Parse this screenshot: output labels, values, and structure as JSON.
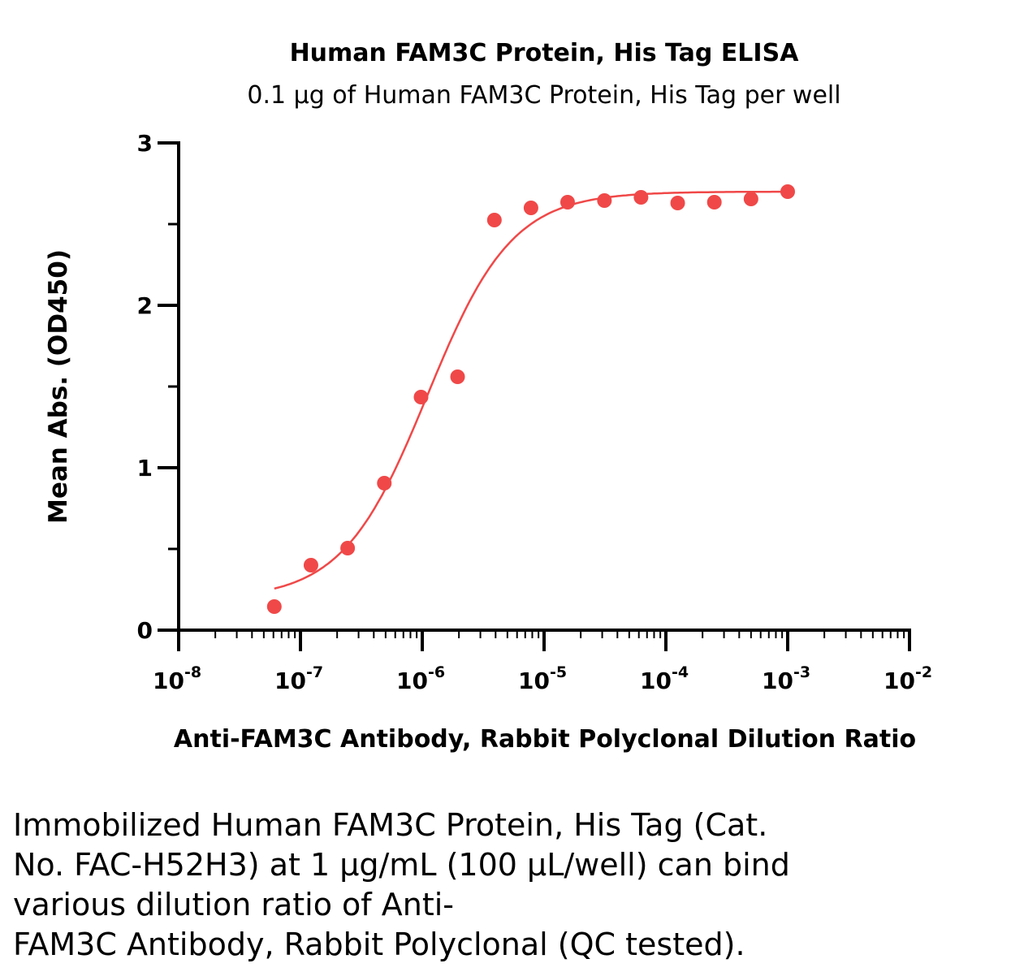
{
  "chart_data": {
    "type": "scatter",
    "title": "Human FAM3C Protein, His Tag ELISA",
    "subtitle": "0.1 μg of Human FAM3C Protein, His Tag per well",
    "xlabel": "Anti-FAM3C Antibody, Rabbit Polyclonal Dilution Ratio",
    "ylabel": "Mean Abs. (OD450)",
    "x_scale": "log",
    "xlim": [
      1e-08,
      0.01
    ],
    "ylim": [
      0,
      3
    ],
    "x_ticks": [
      {
        "base": "10",
        "exp": "-8"
      },
      {
        "base": "10",
        "exp": "-7"
      },
      {
        "base": "10",
        "exp": "-6"
      },
      {
        "base": "10",
        "exp": "-5"
      },
      {
        "base": "10",
        "exp": "-4"
      },
      {
        "base": "10",
        "exp": "-3"
      },
      {
        "base": "10",
        "exp": "-2"
      }
    ],
    "y_ticks": [
      "0",
      "1",
      "2",
      "3"
    ],
    "grid": false,
    "color": "#f04848",
    "x": [
      6.1e-08,
      1.22e-07,
      2.44e-07,
      4.88e-07,
      9.77e-07,
      1.95e-06,
      3.91e-06,
      7.81e-06,
      1.56e-05,
      3.13e-05,
      6.25e-05,
      0.000125,
      0.00025,
      0.0005,
      0.001
    ],
    "y": [
      0.145,
      0.4,
      0.505,
      0.905,
      1.435,
      1.56,
      2.525,
      2.6,
      2.635,
      2.645,
      2.665,
      2.63,
      2.635,
      2.655,
      2.7
    ],
    "fit": {
      "model": "4PL",
      "bottom": 0.19,
      "top": 2.7,
      "ec50": 1.1e-06,
      "hill": 1.25
    }
  },
  "caption": [
    "Immobilized Human FAM3C Protein, His Tag (Cat.",
    "No. FAC-H52H3) at 1 μg/mL (100 μL/well) can bind",
    "various dilution ratio of Anti-",
    "FAM3C Antibody, Rabbit Polyclonal (QC tested)."
  ]
}
